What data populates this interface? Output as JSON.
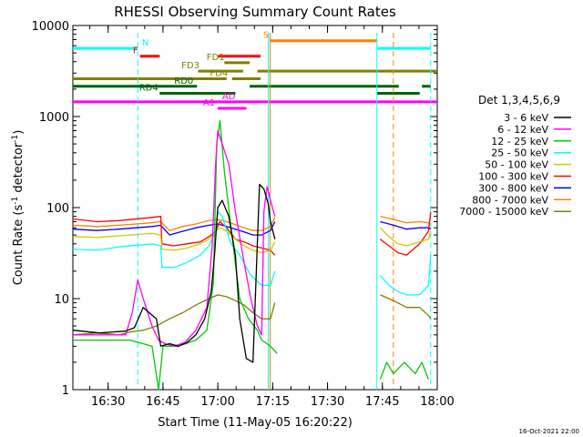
{
  "chart_data": {
    "type": "line",
    "title": "RHESSI Observing Summary Count Rates",
    "xlabel": "Start Time (11-May-05 16:20:22)",
    "ylabel_main": "Count Rate (s",
    "ylabel_sup1": "-1",
    "ylabel_mid": " detector",
    "ylabel_sup2": "-1",
    "ylabel_end": ")",
    "footer": "16-Oct-2021 22:00",
    "xlim": [
      16.3394,
      18.0
    ],
    "ylim": [
      1,
      10000
    ],
    "yscale": "log",
    "x_ticks": [
      {
        "x": 16.5,
        "label": "16:30"
      },
      {
        "x": 16.75,
        "label": "16:45"
      },
      {
        "x": 17.0,
        "label": "17:00"
      },
      {
        "x": 17.25,
        "label": "17:15"
      },
      {
        "x": 17.5,
        "label": "17:30"
      },
      {
        "x": 17.75,
        "label": "17:45"
      },
      {
        "x": 18.0,
        "label": "18:00"
      }
    ],
    "y_ticks": [
      {
        "y": 1,
        "label": "1"
      },
      {
        "y": 10,
        "label": "10"
      },
      {
        "y": 100,
        "label": "100"
      },
      {
        "y": 1000,
        "label": "1000"
      },
      {
        "y": 10000,
        "label": "10000"
      }
    ],
    "legend_title": "Det 1,3,4,5,6,9",
    "legend_position": "right",
    "series": [
      {
        "name": "3 - 6 keV",
        "color": "#000000",
        "x": [
          16.34,
          16.46,
          16.58,
          16.62,
          16.66,
          16.72,
          16.74,
          16.78,
          16.82,
          16.86,
          16.9,
          16.94,
          16.97,
          16.985,
          17.0,
          17.02,
          17.05,
          17.08,
          17.1,
          17.13,
          17.16,
          17.19,
          17.21,
          17.23,
          17.24,
          17.26
        ],
        "y": [
          4.5,
          4.2,
          4.4,
          4.8,
          8,
          6,
          3,
          3.2,
          3,
          3.3,
          4,
          6,
          12,
          30,
          100,
          120,
          80,
          30,
          6,
          2.2,
          2,
          180,
          160,
          110,
          70,
          45
        ]
      },
      {
        "name": "6 - 12 keV",
        "color": "#ff00ff",
        "x": [
          16.34,
          16.58,
          16.61,
          16.635,
          16.66,
          16.7,
          16.73,
          16.76,
          16.8,
          16.85,
          16.9,
          16.95,
          16.975,
          16.99,
          17.0,
          17.02,
          17.05,
          17.08,
          17.12,
          17.15,
          17.18,
          17.2,
          17.21,
          17.225,
          17.24,
          17.26
        ],
        "y": [
          4,
          4,
          7,
          16,
          10,
          5,
          3.5,
          3.2,
          3,
          3.3,
          4.5,
          8,
          40,
          300,
          700,
          500,
          300,
          90,
          25,
          10,
          5,
          4,
          90,
          170,
          120,
          80
        ]
      },
      {
        "name": "12 - 25 keV",
        "color": "#00cc00",
        "x": [
          16.34,
          16.6,
          16.7,
          16.73,
          16.75,
          16.78,
          16.82,
          16.9,
          16.95,
          16.98,
          16.995,
          17.01,
          17.03,
          17.06,
          17.1,
          17.14,
          17.18,
          17.2,
          17.24,
          17.27,
          17.74,
          17.77,
          17.8,
          17.85,
          17.9,
          17.93,
          17.96
        ],
        "y": [
          3.5,
          3.5,
          3,
          1,
          3,
          3,
          3,
          3.5,
          4.5,
          15,
          500,
          900,
          250,
          60,
          10,
          6,
          4.5,
          3.5,
          3,
          2.5,
          1.3,
          2,
          1.5,
          2,
          1.5,
          2,
          1.3
        ]
      },
      {
        "name": "25 - 50 keV",
        "color": "#00ffff",
        "x": [
          16.34,
          16.45,
          16.55,
          16.7,
          16.74,
          16.745,
          16.8,
          16.86,
          16.92,
          16.96,
          16.99,
          17.0,
          17.02,
          17.06,
          17.1,
          17.15,
          17.2,
          17.24,
          17.26,
          17.74,
          17.78,
          17.82,
          17.86,
          17.92,
          17.96,
          17.97
        ],
        "y": [
          35,
          34,
          37,
          40,
          38,
          22,
          22,
          25,
          30,
          38,
          55,
          90,
          80,
          40,
          30,
          18,
          14,
          14,
          20,
          18,
          14,
          12,
          11,
          11,
          14,
          30
        ]
      },
      {
        "name": "50 - 100 keV",
        "color": "#cccc00",
        "x": [
          16.34,
          16.45,
          16.55,
          16.7,
          16.74,
          16.745,
          16.8,
          16.86,
          16.92,
          16.96,
          16.99,
          17.01,
          17.04,
          17.08,
          17.12,
          17.16,
          17.2,
          17.24,
          17.26,
          17.74,
          17.78,
          17.82,
          17.86,
          17.92,
          17.96,
          17.97
        ],
        "y": [
          48,
          47,
          49,
          52,
          50,
          35,
          34,
          36,
          40,
          45,
          55,
          60,
          55,
          45,
          38,
          34,
          32,
          34,
          42,
          60,
          48,
          40,
          38,
          42,
          45,
          55
        ]
      },
      {
        "name": "100 - 300 keV",
        "color": "#ff0000",
        "x": [
          16.34,
          16.45,
          16.55,
          16.7,
          16.74,
          16.745,
          16.8,
          16.86,
          16.92,
          16.96,
          16.99,
          17.01,
          17.04,
          17.08,
          17.12,
          17.16,
          17.2,
          17.24,
          17.26,
          17.74,
          17.78,
          17.82,
          17.86,
          17.92,
          17.96,
          17.97
        ],
        "y": [
          75,
          70,
          72,
          78,
          80,
          40,
          38,
          40,
          42,
          48,
          55,
          70,
          60,
          45,
          42,
          38,
          36,
          34,
          30,
          45,
          38,
          32,
          30,
          40,
          55,
          90
        ]
      },
      {
        "name": "300 - 800 keV",
        "color": "#0000ff",
        "x": [
          16.34,
          16.45,
          16.55,
          16.7,
          16.74,
          16.78,
          16.84,
          16.9,
          16.96,
          17.0,
          17.04,
          17.08,
          17.12,
          17.16,
          17.2,
          17.24,
          17.26,
          17.74,
          17.78,
          17.82,
          17.86,
          17.92,
          17.96,
          17.97
        ],
        "y": [
          58,
          56,
          58,
          62,
          64,
          50,
          55,
          60,
          64,
          66,
          62,
          58,
          54,
          50,
          50,
          56,
          70,
          70,
          66,
          62,
          58,
          60,
          60,
          58
        ]
      },
      {
        "name": "800 - 7000 keV",
        "color": "#ff8000",
        "x": [
          16.34,
          16.45,
          16.55,
          16.7,
          16.74,
          16.78,
          16.84,
          16.9,
          16.96,
          17.0,
          17.04,
          17.08,
          17.12,
          17.16,
          17.2,
          17.24,
          17.26,
          17.74,
          17.78,
          17.82,
          17.86,
          17.92,
          17.96,
          17.97
        ],
        "y": [
          64,
          62,
          64,
          68,
          70,
          56,
          62,
          66,
          72,
          74,
          70,
          65,
          60,
          56,
          56,
          62,
          78,
          80,
          76,
          72,
          68,
          70,
          68,
          66
        ]
      },
      {
        "name": "7000 - 15000 keV",
        "color": "#808000",
        "x": [
          16.34,
          16.45,
          16.55,
          16.6,
          16.66,
          16.72,
          16.78,
          16.84,
          16.9,
          16.96,
          17.0,
          17.04,
          17.08,
          17.12,
          17.16,
          17.2,
          17.24,
          17.26,
          17.74,
          17.78,
          17.82,
          17.86,
          17.92,
          17.96,
          17.97
        ],
        "y": [
          4,
          4.2,
          4,
          4.3,
          4.5,
          5,
          6,
          7,
          8.5,
          10,
          11,
          10.5,
          9.5,
          8.5,
          7,
          6,
          6,
          9,
          11,
          10,
          9,
          8,
          8,
          6.5,
          6
        ]
      }
    ],
    "vertical_markers": [
      {
        "x": 16.635,
        "color": "#00ffff",
        "dash": true
      },
      {
        "x": 17.23,
        "color": "#00ffff",
        "dash": false
      },
      {
        "x": 17.725,
        "color": "#00ffff",
        "dash": false
      },
      {
        "x": 17.97,
        "color": "#00ffff",
        "dash": true
      },
      {
        "x": 17.238,
        "color": "#ff8000",
        "dash": false
      },
      {
        "x": 17.8,
        "color": "#ff8000",
        "dash": true
      }
    ],
    "flags": [
      {
        "label": "N",
        "color": "#00ffff",
        "y": 5600,
        "segments": [
          [
            16.3394,
            16.635
          ],
          [
            17.725,
            17.97
          ]
        ],
        "label_x": 16.67
      },
      {
        "label": "S",
        "color": "#ff8000",
        "y": 6800,
        "segments": [
          [
            17.238,
            17.725
          ]
        ],
        "label_x": 17.22
      },
      {
        "label": "F",
        "color": "#ff0000",
        "y": 4600,
        "segments": [
          [
            16.645,
            16.735
          ],
          [
            17.002,
            17.195
          ]
        ],
        "label_x": 16.625
      },
      {
        "label": "FD1",
        "color": "#808000",
        "y": 3900,
        "segments": [
          [
            17.03,
            17.145
          ]
        ],
        "label_x": 16.99
      },
      {
        "label": "FD3",
        "color": "#808000",
        "y": 3150,
        "segments": [
          [
            16.91,
            17.115
          ],
          [
            17.18,
            18.0
          ]
        ],
        "label_x": 16.875
      },
      {
        "label": "FD4",
        "color": "#808000",
        "y": 2600,
        "segments": [
          [
            16.3394,
            17.04
          ],
          [
            17.065,
            17.195
          ]
        ],
        "label_x": 17.005
      },
      {
        "label": "RD0",
        "color": "#006400",
        "y": 2150,
        "segments": [
          [
            16.3394,
            16.905
          ],
          [
            17.145,
            17.825
          ],
          [
            17.93,
            17.97
          ]
        ],
        "label_x": 16.845
      },
      {
        "label": "RD4",
        "color": "#006400",
        "y": 1800,
        "segments": [
          [
            16.735,
            17.08
          ],
          [
            17.725,
            17.92
          ]
        ],
        "label_x": 16.685
      },
      {
        "label": "AD",
        "color": "#ff00ff",
        "y": 1450,
        "segments": [
          [
            16.3394,
            18.0
          ]
        ],
        "label_x": 17.05
      },
      {
        "label": "A1",
        "color": "#ff00ff",
        "y": 1230,
        "segments": [
          [
            17.0,
            17.13
          ]
        ],
        "label_x": 16.96
      }
    ]
  }
}
